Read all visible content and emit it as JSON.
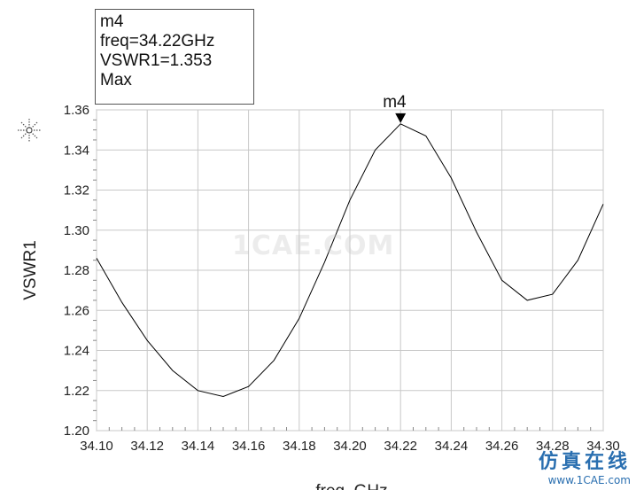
{
  "chart_data": {
    "type": "line",
    "xlabel": "freq, GHz",
    "ylabel": "VSWR1",
    "xlim": [
      34.1,
      34.3
    ],
    "ylim": [
      1.2,
      1.36
    ],
    "x_ticks": [
      "34.10",
      "34.12",
      "34.14",
      "34.16",
      "34.18",
      "34.20",
      "34.22",
      "34.24",
      "34.26",
      "34.28",
      "34.30"
    ],
    "y_ticks": [
      "1.20",
      "1.22",
      "1.24",
      "1.26",
      "1.28",
      "1.30",
      "1.32",
      "1.34",
      "1.36"
    ],
    "grid": true,
    "series": [
      {
        "x": [
          34.1,
          34.11,
          34.12,
          34.13,
          34.14,
          34.15,
          34.16,
          34.17,
          34.18,
          34.19,
          34.2,
          34.21,
          34.22,
          34.23,
          34.24,
          34.25,
          34.26,
          34.27,
          34.28,
          34.29,
          34.3
        ],
        "values": [
          1.286,
          1.264,
          1.245,
          1.23,
          1.22,
          1.217,
          1.222,
          1.235,
          1.256,
          1.284,
          1.315,
          1.34,
          1.353,
          1.347,
          1.326,
          1.299,
          1.275,
          1.265,
          1.268,
          1.285,
          1.313
        ],
        "color": "#000000"
      }
    ],
    "marker": {
      "name": "m4",
      "x": 34.22,
      "y": 1.353,
      "lines": [
        "m4",
        "freq=34.22GHz",
        "VSWR1=1.353",
        "Max"
      ]
    }
  },
  "watermark": "1CAE.COM",
  "logo": {
    "cn": "仿真在线",
    "url": "www.1CAE.com"
  }
}
